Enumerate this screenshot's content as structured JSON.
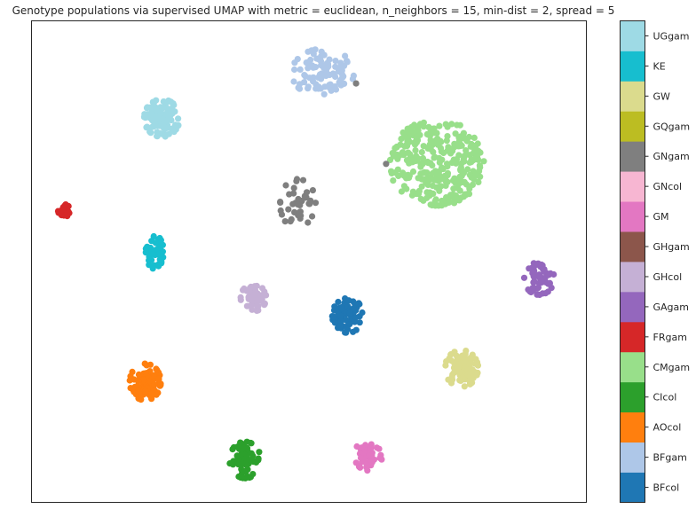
{
  "chart_data": {
    "type": "scatter",
    "title": "Genotype populations via supervised UMAP with metric = euclidean, n_neighbors = 15, min-dist = 2, spread = 5",
    "xlabel": "",
    "ylabel": "",
    "xlim": [
      0,
      100
    ],
    "ylim": [
      0,
      100
    ],
    "grid": false,
    "xticks": false,
    "yticks": false,
    "colorbar_position": "right",
    "colorbar_categories": [
      "BFcol",
      "BFgam",
      "AOcol",
      "CIcol",
      "CMgam",
      "FRgam",
      "GAgam",
      "GHcol",
      "GHgam",
      "GM",
      "GNcol",
      "GNgam",
      "GQgam",
      "GW",
      "KE",
      "UGgam"
    ],
    "colorbar_colors": [
      "#1f77b4",
      "#aec7e8",
      "#ff7f0e",
      "#2ca02c",
      "#98df8a",
      "#d62728",
      "#9467bd",
      "#c5b0d5",
      "#8c564b",
      "#e377c2",
      "#f7b6d2",
      "#7f7f7f",
      "#bcbd22",
      "#dbdb8d",
      "#17becf",
      "#9edae5"
    ],
    "series": [
      {
        "name": "BFcol",
        "color": "#1f77b4",
        "count": 70,
        "center": [
          57.0,
          38.8
        ],
        "spread": [
          2.8,
          3.6
        ],
        "shape": "gauss"
      },
      {
        "name": "BFgam",
        "color": "#aec7e8",
        "count": 90,
        "center": [
          52.5,
          89.2
        ],
        "spread": [
          5.6,
          5.0
        ],
        "shape": "gauss"
      },
      {
        "name": "AOcol",
        "color": "#ff7f0e",
        "count": 90,
        "center": [
          20.5,
          25.0
        ],
        "spread": [
          2.8,
          3.8
        ],
        "shape": "gauss"
      },
      {
        "name": "CIcol",
        "color": "#2ca02c",
        "count": 60,
        "center": [
          38.5,
          8.8
        ],
        "spread": [
          2.8,
          3.8
        ],
        "shape": "gauss"
      },
      {
        "name": "CMgam",
        "color": "#98df8a",
        "count": 320,
        "center": [
          73.0,
          70.5
        ],
        "spread": [
          8.6,
          9.0
        ],
        "shape": "disc"
      },
      {
        "name": "FRgam",
        "color": "#d62728",
        "count": 25,
        "center": [
          5.9,
          60.6
        ],
        "spread": [
          1.1,
          1.3
        ],
        "shape": "gauss"
      },
      {
        "name": "GAgam",
        "color": "#9467bd",
        "count": 60,
        "center": [
          91.5,
          46.5
        ],
        "spread": [
          2.7,
          3.4
        ],
        "shape": "gauss"
      },
      {
        "name": "GHcol",
        "color": "#c5b0d5",
        "count": 50,
        "center": [
          40.0,
          42.5
        ],
        "spread": [
          2.3,
          2.8
        ],
        "shape": "gauss"
      },
      {
        "name": "GM",
        "color": "#e377c2",
        "count": 65,
        "center": [
          60.7,
          9.8
        ],
        "spread": [
          2.5,
          3.2
        ],
        "shape": "gauss"
      },
      {
        "name": "GNgam",
        "color": "#7f7f7f",
        "count": 40,
        "center": [
          48.0,
          62.0
        ],
        "spread": [
          3.2,
          5.2
        ],
        "shape": "gauss"
      },
      {
        "name": "GW",
        "color": "#dbdb8d",
        "count": 85,
        "center": [
          77.5,
          27.8
        ],
        "spread": [
          3.0,
          3.8
        ],
        "shape": "gauss"
      },
      {
        "name": "KE",
        "color": "#17becf",
        "count": 45,
        "center": [
          22.2,
          52.0
        ],
        "spread": [
          1.6,
          3.5
        ],
        "shape": "gauss"
      },
      {
        "name": "UGgam",
        "color": "#9edae5",
        "count": 120,
        "center": [
          23.5,
          79.8
        ],
        "spread": [
          3.2,
          3.9
        ],
        "shape": "gauss"
      }
    ],
    "outliers": [
      {
        "name": "GNgam",
        "x": 58.5,
        "y": 87.0
      },
      {
        "name": "GNgam",
        "x": 63.9,
        "y": 70.3
      }
    ]
  }
}
